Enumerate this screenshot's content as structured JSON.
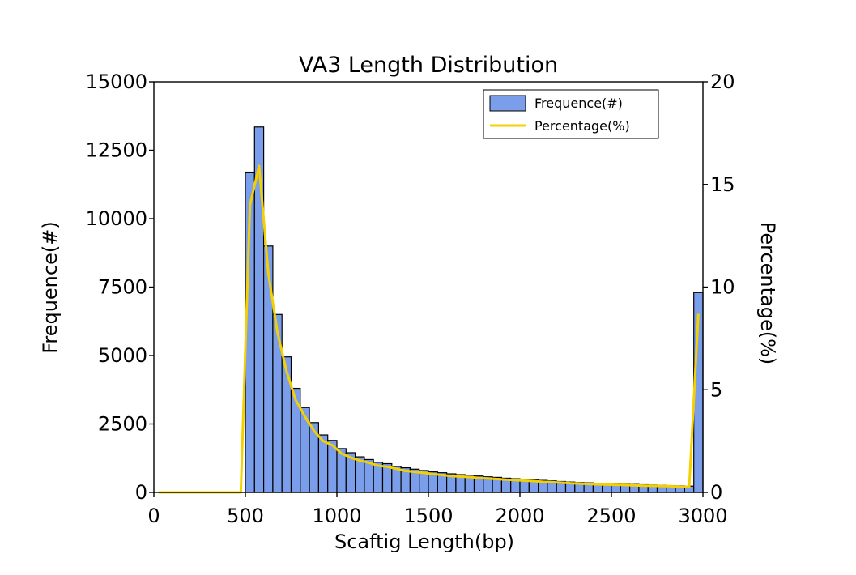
{
  "chart_data": {
    "type": "bar",
    "title": "VA3 Length Distribution",
    "xlabel": "Scaftig Length(bp)",
    "ylabel": "Frequence(#)",
    "y2label": "Percentage(%)",
    "xlim": [
      0,
      3000
    ],
    "ylim": [
      0,
      15000
    ],
    "y2lim": [
      0,
      20
    ],
    "xticks": [
      0,
      500,
      1000,
      1500,
      2000,
      2500,
      3000
    ],
    "yticks": [
      0,
      2500,
      5000,
      7500,
      10000,
      12500,
      15000
    ],
    "y2ticks": [
      0,
      5,
      10,
      15,
      20
    ],
    "bin_width": 50,
    "grid": false,
    "legend_position": "top-right",
    "colors": {
      "bar": "#7b9eea",
      "bar_edge": "#000000",
      "line": "#f5d000"
    },
    "series": [
      {
        "name": "Frequence(#)",
        "kind": "bar",
        "bin_starts": [
          500,
          550,
          600,
          650,
          700,
          750,
          800,
          850,
          900,
          950,
          1000,
          1050,
          1100,
          1150,
          1200,
          1250,
          1300,
          1350,
          1400,
          1450,
          1500,
          1550,
          1600,
          1650,
          1700,
          1750,
          1800,
          1850,
          1900,
          1950,
          2000,
          2050,
          2100,
          2150,
          2200,
          2250,
          2300,
          2350,
          2400,
          2450,
          2500,
          2550,
          2600,
          2650,
          2700,
          2750,
          2800,
          2850,
          2900,
          2950
        ],
        "values": [
          11700,
          13350,
          9000,
          6500,
          4950,
          3800,
          3100,
          2550,
          2100,
          1900,
          1600,
          1450,
          1300,
          1200,
          1100,
          1050,
          950,
          900,
          850,
          800,
          750,
          720,
          680,
          650,
          630,
          600,
          570,
          550,
          520,
          500,
          480,
          460,
          440,
          420,
          400,
          380,
          360,
          350,
          330,
          320,
          310,
          300,
          290,
          280,
          270,
          260,
          250,
          240,
          230,
          7300
        ]
      },
      {
        "name": "Percentage(%)",
        "kind": "line",
        "x": [
          25,
          75,
          125,
          175,
          225,
          275,
          325,
          375,
          425,
          475,
          525,
          575,
          625,
          675,
          725,
          775,
          825,
          875,
          925,
          975,
          1025,
          1075,
          1125,
          1175,
          1225,
          1275,
          1325,
          1375,
          1425,
          1475,
          1525,
          1575,
          1625,
          1675,
          1725,
          1775,
          1825,
          1875,
          1925,
          1975,
          2025,
          2075,
          2125,
          2175,
          2225,
          2275,
          2325,
          2375,
          2425,
          2475,
          2525,
          2575,
          2625,
          2675,
          2725,
          2775,
          2825,
          2875,
          2925,
          2975
        ],
        "values": [
          0,
          0,
          0,
          0,
          0,
          0,
          0,
          0,
          0,
          0,
          14.0,
          15.9,
          10.7,
          7.8,
          5.9,
          4.5,
          3.7,
          3.0,
          2.5,
          2.3,
          1.9,
          1.7,
          1.55,
          1.45,
          1.3,
          1.25,
          1.15,
          1.05,
          1.0,
          0.95,
          0.9,
          0.85,
          0.8,
          0.77,
          0.75,
          0.7,
          0.68,
          0.65,
          0.62,
          0.6,
          0.57,
          0.55,
          0.52,
          0.5,
          0.48,
          0.45,
          0.43,
          0.41,
          0.39,
          0.38,
          0.37,
          0.36,
          0.34,
          0.33,
          0.32,
          0.31,
          0.3,
          0.28,
          0.27,
          8.7
        ]
      }
    ]
  }
}
